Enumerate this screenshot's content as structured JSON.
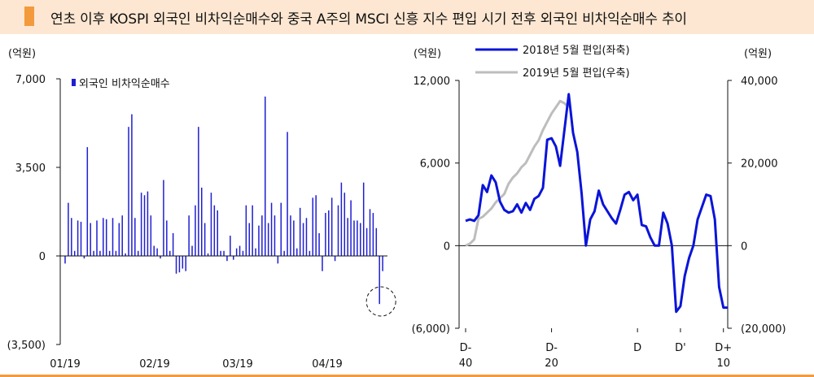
{
  "title": "연초 이후 KOSPI 외국인 비차익순매수와 중국 A주의 MSCI 신흥 지수 편입 시기 전후 외국인 비차익순매수 추이",
  "colors": {
    "accent": "#f39a3c",
    "title_bg": "#fde7d2",
    "bar": "#1f1fd1",
    "line_2018": "#0a14d8",
    "line_2019": "#bdbdbd"
  },
  "chart_data": [
    {
      "type": "bar",
      "unit_label": "(억원)",
      "legend": "외국인 비차익순매수",
      "ylim": [
        -3500,
        7000
      ],
      "y_ticks": [
        7000,
        3500,
        0,
        -3500
      ],
      "y_tick_labels": [
        "7,000",
        "3,500",
        "0",
        "(3,500)"
      ],
      "x_tick_labels": [
        "01/19",
        "02/19",
        "03/19",
        "04/19"
      ],
      "values": [
        -300,
        2100,
        1500,
        200,
        1400,
        1350,
        -100,
        4300,
        1300,
        200,
        1400,
        200,
        1500,
        1450,
        200,
        1500,
        200,
        1300,
        1600,
        100,
        5100,
        5600,
        1500,
        200,
        2500,
        2400,
        2550,
        1600,
        400,
        300,
        -100,
        3000,
        1400,
        200,
        900,
        -700,
        -650,
        -500,
        -600,
        1600,
        400,
        2000,
        5100,
        2700,
        1300,
        100,
        2500,
        2000,
        1800,
        200,
        200,
        -200,
        800,
        -150,
        300,
        400,
        200,
        2000,
        1300,
        2000,
        300,
        1200,
        1600,
        6300,
        1300,
        2100,
        1600,
        -300,
        2100,
        200,
        4900,
        1600,
        1400,
        300,
        1900,
        1300,
        1500,
        200,
        2300,
        2400,
        900,
        -600,
        1700,
        1800,
        2300,
        -200,
        2000,
        2900,
        2500,
        1500,
        2200,
        1400,
        1400,
        1300,
        2900,
        1100,
        1850,
        1700,
        1100,
        -1900,
        -600
      ],
      "annotation": "dashed-circle-around-last-negative-bar"
    },
    {
      "type": "line",
      "left_unit_label": "(억원)",
      "right_unit_label": "(억원)",
      "ylim_left": [
        -6000,
        12000
      ],
      "ylim_right": [
        -20000,
        40000
      ],
      "left_tick_labels": [
        "12,000",
        "6,000",
        "0",
        "(6,000)"
      ],
      "left_ticks": [
        12000,
        6000,
        0,
        -6000
      ],
      "right_tick_labels": [
        "40,000",
        "20,000",
        "0",
        "(20,000)"
      ],
      "right_ticks": [
        40000,
        20000,
        0,
        -20000
      ],
      "x_tick_labels": [
        [
          "D-",
          "40"
        ],
        [
          "D-",
          "20"
        ],
        [
          "D",
          ""
        ],
        [
          "D'",
          ""
        ],
        [
          "D+",
          "10"
        ]
      ],
      "x_tick_positions": [
        -40,
        -20,
        0,
        10,
        20
      ],
      "x_range": [
        -40,
        21
      ],
      "series": [
        {
          "name": "2018년 5월 편입(좌축)",
          "axis": "left",
          "x": [
            -40,
            -39,
            -38,
            -37,
            -36,
            -35,
            -34,
            -33,
            -32,
            -31,
            -30,
            -29,
            -28,
            -27,
            -26,
            -25,
            -24,
            -23,
            -22,
            -21,
            -20,
            -19,
            -18,
            -17,
            -16,
            -15,
            -14,
            -13,
            -12,
            -11,
            -10,
            -9,
            -8,
            -7,
            -6,
            -5,
            -4,
            -3,
            -2,
            -1,
            0,
            1,
            2,
            3,
            4,
            5,
            6,
            7,
            8,
            9,
            10,
            11,
            12,
            13,
            14,
            15,
            16,
            17,
            18,
            19,
            20,
            21
          ],
          "values": [
            1800,
            1900,
            1800,
            2200,
            4400,
            3900,
            5100,
            4600,
            3200,
            2600,
            2400,
            2500,
            3000,
            2400,
            3100,
            2600,
            3400,
            3600,
            4200,
            7700,
            7800,
            7200,
            5800,
            8400,
            11000,
            8200,
            6800,
            3800,
            0,
            1900,
            2500,
            4000,
            3000,
            2500,
            2000,
            1600,
            2600,
            3700,
            3900,
            3300,
            3700,
            1500,
            1400,
            600,
            0,
            0,
            2400,
            1600,
            0,
            -4800,
            -4400,
            -2200,
            -900,
            0,
            1900,
            2800,
            3700,
            3600,
            1900,
            -3000,
            -4500,
            -4500
          ]
        },
        {
          "name": "2019년 5월 편입(우축)",
          "axis": "right",
          "x": [
            -40,
            -39,
            -38,
            -37,
            -36,
            -35,
            -34,
            -33,
            -32,
            -31,
            -30,
            -29,
            -28,
            -27,
            -26,
            -25,
            -24,
            -23,
            -22,
            -21,
            -20,
            -19,
            -18,
            -17,
            -16
          ],
          "values": [
            0,
            500,
            1500,
            6500,
            7000,
            8000,
            9000,
            10500,
            11500,
            12500,
            15000,
            16500,
            17500,
            19000,
            20000,
            22000,
            24000,
            25500,
            28000,
            30000,
            32000,
            33500,
            35000,
            34500,
            33500
          ]
        }
      ]
    }
  ]
}
